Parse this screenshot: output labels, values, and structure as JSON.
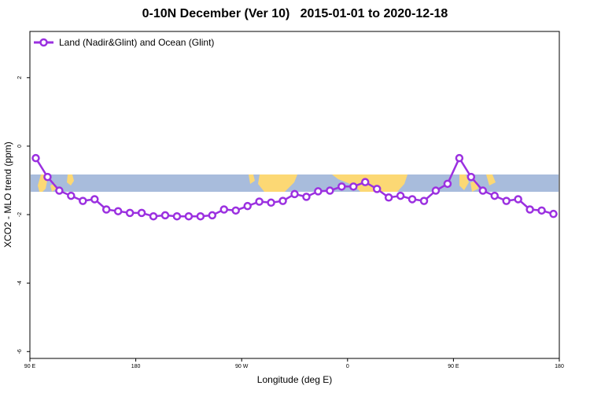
{
  "chart_data": {
    "type": "line",
    "title": "0-10N December (Ver 10)   2015-01-01 to 2020-12-18",
    "xlabel": "Longitude (deg E)",
    "ylabel": "XCO2 - MLO trend (ppm)",
    "xlim": [
      90,
      540
    ],
    "ylim": [
      -6.2,
      3.35
    ],
    "x_ticks": [
      {
        "value": 90,
        "label": "90 E"
      },
      {
        "value": 180,
        "label": "180"
      },
      {
        "value": 270,
        "label": "90 W"
      },
      {
        "value": 360,
        "label": "0"
      },
      {
        "value": 450,
        "label": "90 E"
      },
      {
        "value": 540,
        "label": "180"
      }
    ],
    "y_ticks": [
      {
        "value": -6,
        "label": "-6"
      },
      {
        "value": -4,
        "label": "-4"
      },
      {
        "value": -2,
        "label": "-2"
      },
      {
        "value": 0,
        "label": "0"
      },
      {
        "value": 2,
        "label": "2"
      }
    ],
    "legend_position": "top-left",
    "grid": false,
    "background_map": "land/ocean map strip for 0-10N",
    "colors": {
      "series": "#9B30E0",
      "ocean": "#A8BCDC",
      "land": "#FCD874"
    },
    "series": [
      {
        "name": "Land (Nadir&Glint) and Ocean (Glint)",
        "x": [
          95,
          105,
          115,
          125,
          135,
          145,
          155,
          165,
          175,
          185,
          195,
          205,
          215,
          225,
          235,
          245,
          255,
          265,
          275,
          285,
          295,
          305,
          315,
          325,
          335,
          345,
          355,
          365,
          375,
          385,
          395,
          405,
          415,
          425,
          435,
          445,
          455,
          465,
          475,
          485,
          495,
          505,
          515,
          525,
          535
        ],
        "y": [
          -0.35,
          -0.9,
          -1.3,
          -1.45,
          -1.6,
          -1.55,
          -1.85,
          -1.9,
          -1.95,
          -1.95,
          -2.05,
          -2.02,
          -2.05,
          -2.05,
          -2.05,
          -2.02,
          -1.85,
          -1.88,
          -1.75,
          -1.62,
          -1.65,
          -1.6,
          -1.4,
          -1.48,
          -1.32,
          -1.3,
          -1.18,
          -1.18,
          -1.05,
          -1.25,
          -1.5,
          -1.45,
          -1.55,
          -1.6,
          -1.3,
          -1.1,
          -0.35,
          -0.9,
          -1.3,
          -1.45,
          -1.6,
          -1.55,
          -1.85,
          -1.88,
          -1.98
        ]
      }
    ]
  }
}
